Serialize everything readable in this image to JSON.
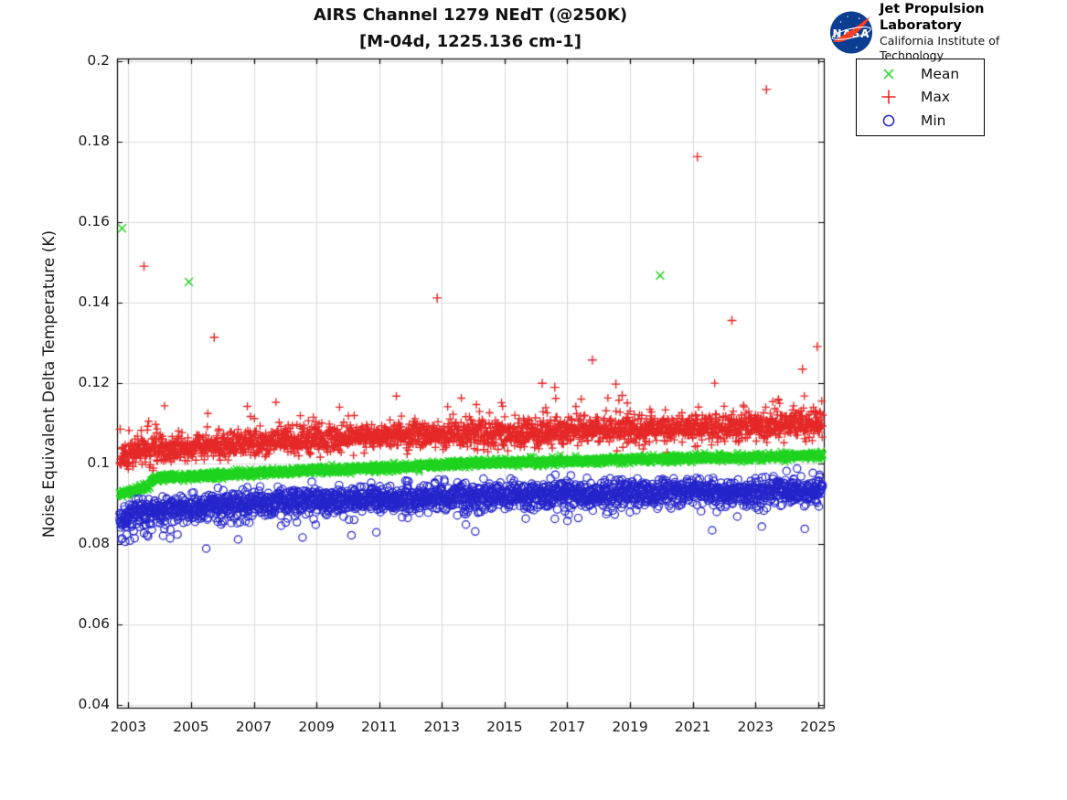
{
  "title": {
    "line1": "AIRS Channel 1279 NEdT (@250K)",
    "line2": "[M-04d, 1225.136 cm-1]"
  },
  "logo": {
    "nasa_text": "NASA",
    "org": "Jet Propulsion Laboratory",
    "sub": "California Institute of Technology"
  },
  "legend": {
    "items": [
      {
        "label": "Mean",
        "marker": "x",
        "color": "#3bdc3b"
      },
      {
        "label": "Max",
        "marker": "+",
        "color": "#e52727"
      },
      {
        "label": "Min",
        "marker": "o",
        "color": "#2424cb"
      }
    ]
  },
  "chart_data": {
    "type": "scatter",
    "title": "AIRS Channel 1279 NEdT (@250K) [M-04d, 1225.136 cm-1]",
    "xlabel": "",
    "ylabel": "Noise Equivalent Delta Temperature (K)",
    "xlim": [
      2002.64,
      2025.18
    ],
    "ylim": [
      0.0394,
      0.2007
    ],
    "grid": true,
    "legend_position": "outside-top-right",
    "x_tick_values": [
      2003,
      2005,
      2007,
      2009,
      2011,
      2013,
      2015,
      2017,
      2019,
      2021,
      2023,
      2025
    ],
    "x_tick_labels": [
      "2003",
      "2005",
      "2007",
      "2009",
      "2011",
      "2013",
      "2015",
      "2017",
      "2019",
      "2021",
      "2023",
      "2025"
    ],
    "y_tick_values": [
      0.2,
      0.18,
      0.16,
      0.14,
      0.12,
      0.1,
      0.08,
      0.06,
      0.04
    ],
    "y_tick_labels": [
      "0.2",
      "0.18",
      "0.16",
      "0.14",
      "0.12",
      "0.1",
      "0.08",
      "0.06",
      "0.04"
    ],
    "x_start": 2002.72,
    "x_end": 2025.15,
    "points_per_year": 110,
    "series": [
      {
        "name": "Max",
        "marker": "+",
        "color": "#e52727",
        "noise_sd": 0.0016,
        "tail": {
          "dir": 1,
          "p": 0.22,
          "scale": 0.0018,
          "max": 0.008
        },
        "trend": [
          [
            2002.72,
            0.1012
          ],
          [
            2003.0,
            0.1018
          ],
          [
            2003.3,
            0.1028
          ],
          [
            2003.7,
            0.1033
          ],
          [
            2004.2,
            0.1032
          ],
          [
            2005,
            0.104
          ],
          [
            2006,
            0.1046
          ],
          [
            2007,
            0.1051
          ],
          [
            2008,
            0.1055
          ],
          [
            2009,
            0.1059
          ],
          [
            2010,
            0.1062
          ],
          [
            2011,
            0.1065
          ],
          [
            2012,
            0.1068
          ],
          [
            2013,
            0.1071
          ],
          [
            2014,
            0.1073
          ],
          [
            2015,
            0.1075
          ],
          [
            2016,
            0.1077
          ],
          [
            2017,
            0.1079
          ],
          [
            2018,
            0.1081
          ],
          [
            2019,
            0.1083
          ],
          [
            2020,
            0.1085
          ],
          [
            2021,
            0.1087
          ],
          [
            2022,
            0.1089
          ],
          [
            2023,
            0.1091
          ],
          [
            2024,
            0.1093
          ],
          [
            2025.15,
            0.1096
          ]
        ]
      },
      {
        "name": "Mean",
        "marker": "x",
        "color": "#1ed31e",
        "noise_sd": 0.00045,
        "tail": null,
        "trend": [
          [
            2002.72,
            0.0924
          ],
          [
            2003.2,
            0.0933
          ],
          [
            2003.68,
            0.0945
          ],
          [
            2003.76,
            0.0962
          ],
          [
            2004.3,
            0.0966
          ],
          [
            2005,
            0.0969
          ],
          [
            2006,
            0.0973
          ],
          [
            2007,
            0.0977
          ],
          [
            2008,
            0.0981
          ],
          [
            2009,
            0.0984
          ],
          [
            2010,
            0.0987
          ],
          [
            2011,
            0.099
          ],
          [
            2012,
            0.0994
          ],
          [
            2013,
            0.0998
          ],
          [
            2014,
            0.1001
          ],
          [
            2015,
            0.1003
          ],
          [
            2016,
            0.1005
          ],
          [
            2017,
            0.1007
          ],
          [
            2018,
            0.1009
          ],
          [
            2019,
            0.1011
          ],
          [
            2020,
            0.1012
          ],
          [
            2021,
            0.1014
          ],
          [
            2022,
            0.1015
          ],
          [
            2023,
            0.1017
          ],
          [
            2024,
            0.1019
          ],
          [
            2025.15,
            0.1021
          ]
        ]
      },
      {
        "name": "Min",
        "marker": "o",
        "color": "#2424cb",
        "noise_sd": 0.0016,
        "tail": {
          "dir": -1,
          "p": 0.12,
          "scale": 0.0018,
          "max": 0.0075
        },
        "trend": [
          [
            2002.72,
            0.0867
          ],
          [
            2003.0,
            0.0871
          ],
          [
            2003.5,
            0.0878
          ],
          [
            2004,
            0.0886
          ],
          [
            2005,
            0.0893
          ],
          [
            2006,
            0.0897
          ],
          [
            2007,
            0.0901
          ],
          [
            2008,
            0.0905
          ],
          [
            2009,
            0.0908
          ],
          [
            2010,
            0.0911
          ],
          [
            2011,
            0.0913
          ],
          [
            2012,
            0.0916
          ],
          [
            2013,
            0.0918
          ],
          [
            2014,
            0.092
          ],
          [
            2015,
            0.0922
          ],
          [
            2016,
            0.0924
          ],
          [
            2017,
            0.0925
          ],
          [
            2018,
            0.0926
          ],
          [
            2019,
            0.0928
          ],
          [
            2020,
            0.0929
          ],
          [
            2021,
            0.093
          ],
          [
            2022,
            0.0931
          ],
          [
            2023,
            0.0932
          ],
          [
            2024,
            0.0933
          ],
          [
            2025.15,
            0.0935
          ]
        ]
      }
    ],
    "outliers": [
      {
        "series": "Mean",
        "x": 2002.8,
        "y": 0.1585
      },
      {
        "series": "Mean",
        "x": 2004.93,
        "y": 0.1452
      },
      {
        "series": "Mean",
        "x": 2019.96,
        "y": 0.1468
      },
      {
        "series": "Max",
        "x": 2002.74,
        "y": 0.1086
      },
      {
        "series": "Max",
        "x": 2003.5,
        "y": 0.1491
      },
      {
        "series": "Max",
        "x": 2005.74,
        "y": 0.1314
      },
      {
        "series": "Max",
        "x": 2012.85,
        "y": 0.1412
      },
      {
        "series": "Max",
        "x": 2016.2,
        "y": 0.12
      },
      {
        "series": "Max",
        "x": 2016.6,
        "y": 0.119
      },
      {
        "series": "Max",
        "x": 2017.8,
        "y": 0.1258
      },
      {
        "series": "Max",
        "x": 2018.55,
        "y": 0.1198
      },
      {
        "series": "Max",
        "x": 2018.75,
        "y": 0.117
      },
      {
        "series": "Max",
        "x": 2021.15,
        "y": 0.1763
      },
      {
        "series": "Max",
        "x": 2022.25,
        "y": 0.1356
      },
      {
        "series": "Max",
        "x": 2023.35,
        "y": 0.193
      },
      {
        "series": "Max",
        "x": 2024.5,
        "y": 0.1235
      },
      {
        "series": "Max",
        "x": 2024.97,
        "y": 0.1291
      },
      {
        "series": "Min",
        "x": 2002.78,
        "y": 0.0812
      },
      {
        "series": "Min",
        "x": 2002.9,
        "y": 0.0806
      },
      {
        "series": "Min",
        "x": 2003.05,
        "y": 0.0809
      },
      {
        "series": "Min",
        "x": 2003.2,
        "y": 0.0815
      },
      {
        "series": "Min",
        "x": 2003.75,
        "y": 0.0836
      },
      {
        "series": "Min",
        "x": 2004.15,
        "y": 0.0838
      },
      {
        "series": "Min",
        "x": 2005.85,
        "y": 0.0856
      }
    ]
  }
}
